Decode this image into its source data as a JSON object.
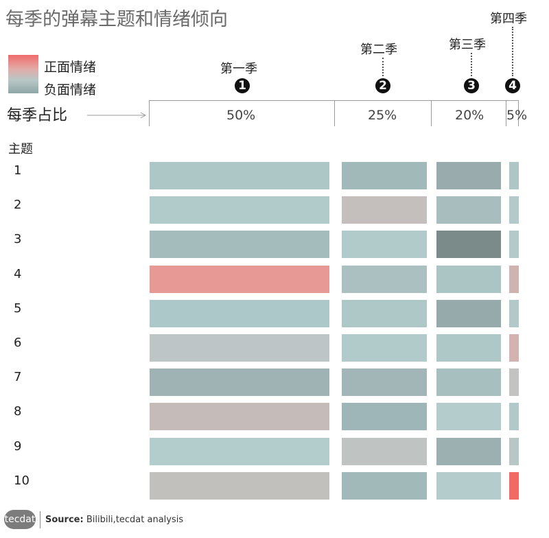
{
  "title": "每季的弹幕主题和情绪倾向",
  "legend": {
    "positive": "正面情绪",
    "negative": "负面情绪"
  },
  "share_label": "每季占比",
  "topic_header": "主题",
  "seasons": [
    {
      "name": "第一季",
      "num": "1",
      "share": "50%"
    },
    {
      "name": "第二季",
      "num": "2",
      "share": "25%"
    },
    {
      "name": "第三季",
      "num": "3",
      "share": "20%"
    },
    {
      "name": "第四季",
      "num": "4",
      "share": "5%"
    }
  ],
  "topics": [
    "1",
    "2",
    "3",
    "4",
    "5",
    "6",
    "7",
    "8",
    "9",
    "10"
  ],
  "colors": [
    [
      "#adc6c6",
      "#a2b9b9",
      "#9aabae",
      "#afc6c6"
    ],
    [
      "#b1caca",
      "#c4bfbc",
      "#a8bebe",
      "#b4c9c9"
    ],
    [
      "#a5bcbd",
      "#b1cbcb",
      "#7a8b8a",
      "#b4caca"
    ],
    [
      "#e69995",
      "#abc0c0",
      "#abc4c4",
      "#cfb3b1"
    ],
    [
      "#adc8c8",
      "#aec8c8",
      "#97aaab",
      "#b3c9c9"
    ],
    [
      "#bec5c6",
      "#b1caca",
      "#aec8c8",
      "#d3b3b0"
    ],
    [
      "#9fb3b4",
      "#a2b6b7",
      "#a7bfbf",
      "#c3c4c1"
    ],
    [
      "#c5bcb9",
      "#9fb6b8",
      "#b4cccc",
      "#b1c9c9"
    ],
    [
      "#b3cdcd",
      "#bfc4c3",
      "#9cafb1",
      "#b9c6c6"
    ],
    [
      "#c2c0bc",
      "#a2b9b9",
      "#b5cccc",
      "#f26965"
    ]
  ],
  "source": {
    "logo": "tecdat",
    "label": "Source:",
    "text": "Bilibili,tecdat analysis"
  },
  "chart_data": {
    "type": "heatmap",
    "title": "每季的弹幕主题和情绪倾向",
    "x_categories": [
      "第一季",
      "第二季",
      "第三季",
      "第四季"
    ],
    "x_shares_percent": [
      50,
      25,
      20,
      5
    ],
    "y_categories": [
      "1",
      "2",
      "3",
      "4",
      "5",
      "6",
      "7",
      "8",
      "9",
      "10"
    ],
    "ylabel": "主题",
    "legend": [
      "正面情绪",
      "负面情绪"
    ]
  }
}
